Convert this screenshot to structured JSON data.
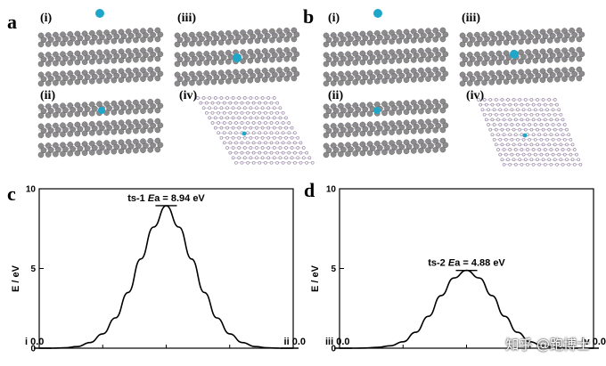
{
  "panel_letters": {
    "a": "a",
    "b": "b",
    "c": "c",
    "d": "d"
  },
  "sub_labels": {
    "i": "(i)",
    "ii": "(ii)",
    "iii": "(iii)",
    "iv": "(iv)"
  },
  "colors": {
    "atom_carbon": "#8c8c8c",
    "atom_adsorbate": "#1fa7c9",
    "bond": "#c8a9d8",
    "line": "#000000"
  },
  "watermark": "知乎 @跑博士",
  "chart_data": [
    {
      "type": "line",
      "panel": "c",
      "ylabel": "E / eV",
      "ylim": [
        0,
        10
      ],
      "yticks": [
        0,
        5,
        10
      ],
      "x": [
        0,
        0.5,
        1,
        1.5,
        2,
        2.5,
        3,
        3.5,
        4,
        4.5,
        5,
        5.5,
        6,
        6.5,
        7,
        7.5,
        8,
        8.5,
        9,
        9.5,
        10
      ],
      "series": [
        {
          "values": [
            0,
            0,
            0.02,
            0.1,
            0.35,
            0.9,
            1.9,
            3.5,
            5.6,
            7.6,
            8.94,
            7.6,
            5.6,
            3.5,
            1.9,
            0.9,
            0.35,
            0.1,
            0.02,
            0,
            0
          ]
        }
      ],
      "annotations": {
        "ts_prefix": "ts-1 ",
        "ea_sym": "E",
        "ea_sub": "a",
        "ts_value": " = 8.94 eV",
        "start": "i 0.0",
        "end": "ii 0.0"
      }
    },
    {
      "type": "line",
      "panel": "d",
      "ylabel": "E / eV",
      "ylim": [
        0,
        10
      ],
      "yticks": [
        0,
        5,
        10
      ],
      "x": [
        0,
        0.5,
        1,
        1.5,
        2,
        2.5,
        3,
        3.5,
        4,
        4.5,
        5,
        5.5,
        6,
        6.5,
        7,
        7.5,
        8,
        8.5,
        9,
        9.5,
        10
      ],
      "series": [
        {
          "values": [
            0,
            0,
            0.01,
            0.05,
            0.15,
            0.4,
            1.0,
            2.0,
            3.3,
            4.4,
            4.88,
            4.4,
            3.3,
            2.0,
            1.0,
            0.4,
            0.15,
            0.05,
            0.01,
            0,
            0
          ]
        }
      ],
      "annotations": {
        "ts_prefix": "ts-2 ",
        "ea_sym": "E",
        "ea_sub": "a",
        "ts_value": " = 4.88 eV",
        "start": "iii 0.0",
        "end": "iv 0.0"
      }
    }
  ]
}
